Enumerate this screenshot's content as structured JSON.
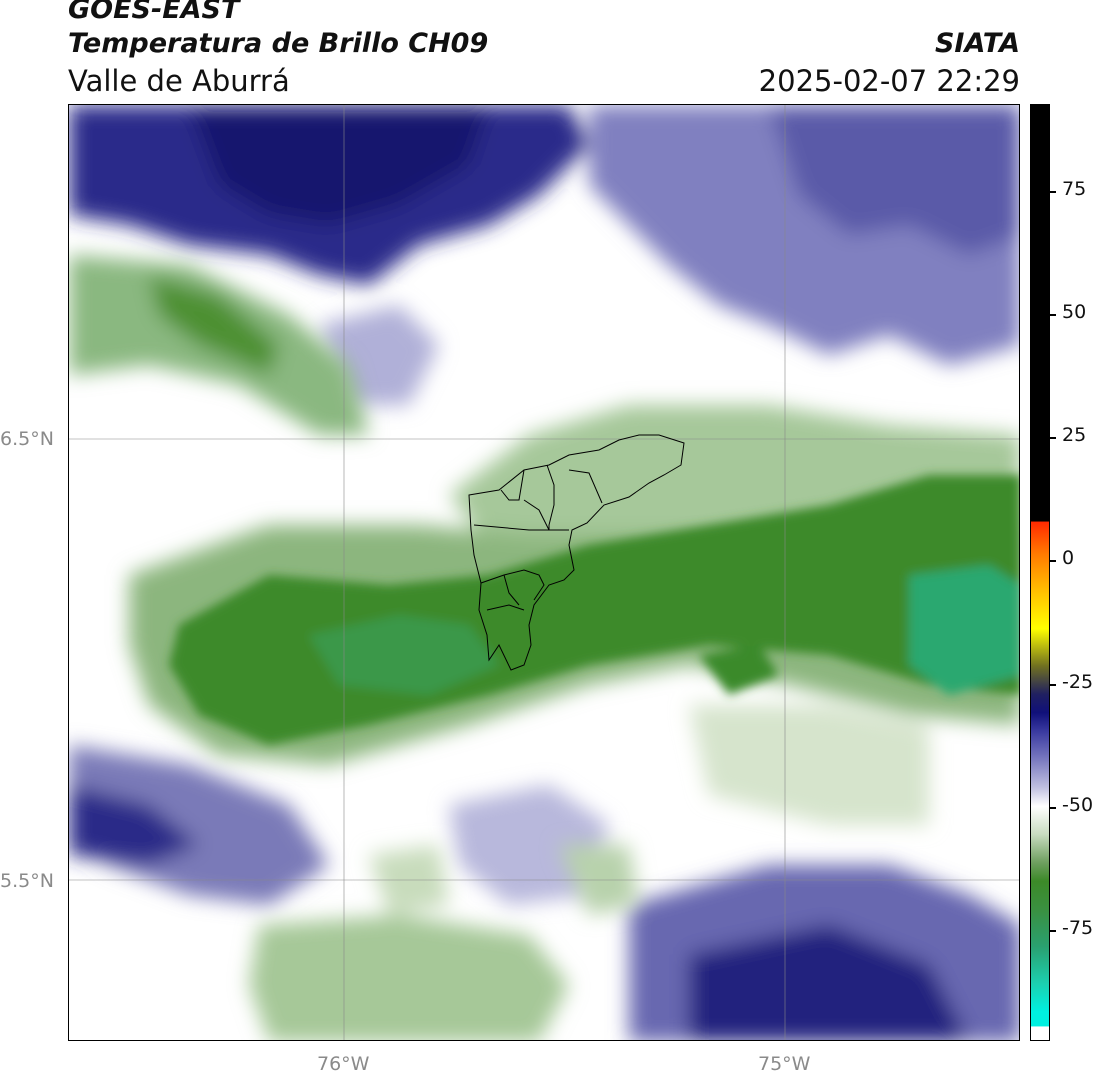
{
  "header": {
    "title_line1": "GOES-EAST",
    "title_line2": "Temperatura de Brillo CH09",
    "subtitle": "Valle de Aburrá",
    "brand": "SIATA",
    "datetime": "2025-02-07 22:29"
  },
  "axes": {
    "lon_labels": [
      "76°W",
      "75°W"
    ],
    "lat_labels": [
      "6.5°N",
      "5.5°N"
    ]
  },
  "colorbar": {
    "ticks": [
      "75",
      "50",
      "25",
      "0",
      "-25",
      "-50",
      "-75"
    ]
  },
  "colors": {
    "cloud_cold_green": "#3a8a2a",
    "cloud_cyan": "#2aa070",
    "clear_blue": "#1a1a80",
    "neutral_white": "#ffffff"
  }
}
